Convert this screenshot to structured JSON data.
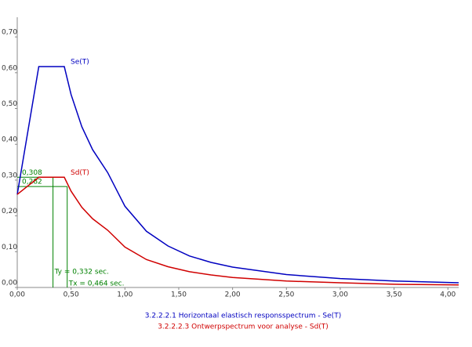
{
  "chart_data": {
    "type": "line",
    "x": [
      0,
      0.2,
      0.437,
      0.5,
      0.6,
      0.7,
      0.84,
      1.0,
      1.2,
      1.4,
      1.6,
      1.8,
      2.0,
      2.5,
      3.0,
      3.5,
      4.1
    ],
    "series": [
      {
        "name": "Se(T)",
        "title": "3.2.2.2.1 Horizontaal elastisch responsspectrum - Se(T)",
        "color": "#0000c0",
        "values": [
          0.26,
          0.617,
          0.617,
          0.539,
          0.449,
          0.385,
          0.321,
          0.227,
          0.157,
          0.116,
          0.088,
          0.07,
          0.057,
          0.036,
          0.025,
          0.018,
          0.013
        ]
      },
      {
        "name": "Sd(T)",
        "title": "3.2.2.2.3 Ontwerpspectrum voor analyse - Sd(T)",
        "color": "#d00000",
        "values": [
          0.26,
          0.308,
          0.308,
          0.269,
          0.224,
          0.192,
          0.16,
          0.113,
          0.078,
          0.058,
          0.044,
          0.035,
          0.028,
          0.018,
          0.013,
          0.009,
          0.007
        ]
      }
    ],
    "annotations": [
      {
        "x": 0.332,
        "y": 0.308,
        "y_label": "0,308",
        "x_label": "Ty = 0,332 sec.",
        "color": "#008000"
      },
      {
        "x": 0.464,
        "y": 0.282,
        "y_label": "0,282",
        "x_label": "Tx = 0,464 sec.",
        "color": "#008000"
      }
    ],
    "xlim": [
      0,
      4.1
    ],
    "ylim": [
      0,
      0.755
    ],
    "xticks": [
      {
        "value": 0,
        "label": "0,00"
      },
      {
        "value": 0.5,
        "label": "0,50"
      },
      {
        "value": 1,
        "label": "1,00"
      },
      {
        "value": 1.5,
        "label": "1,50"
      },
      {
        "value": 2,
        "label": "2,00"
      },
      {
        "value": 2.5,
        "label": "2,50"
      },
      {
        "value": 3,
        "label": "3,00"
      },
      {
        "value": 3.5,
        "label": "3,50"
      },
      {
        "value": 4,
        "label": "4,00"
      }
    ],
    "yticks": [
      {
        "value": 0,
        "label": "0,00"
      },
      {
        "value": 0.1,
        "label": "0,10"
      },
      {
        "value": 0.2,
        "label": "0,20"
      },
      {
        "value": 0.3,
        "label": "0,30"
      },
      {
        "value": 0.4,
        "label": "0,40"
      },
      {
        "value": 0.5,
        "label": "0,50"
      },
      {
        "value": 0.6,
        "label": "0,60"
      },
      {
        "value": 0.7,
        "label": "0,70"
      }
    ]
  }
}
